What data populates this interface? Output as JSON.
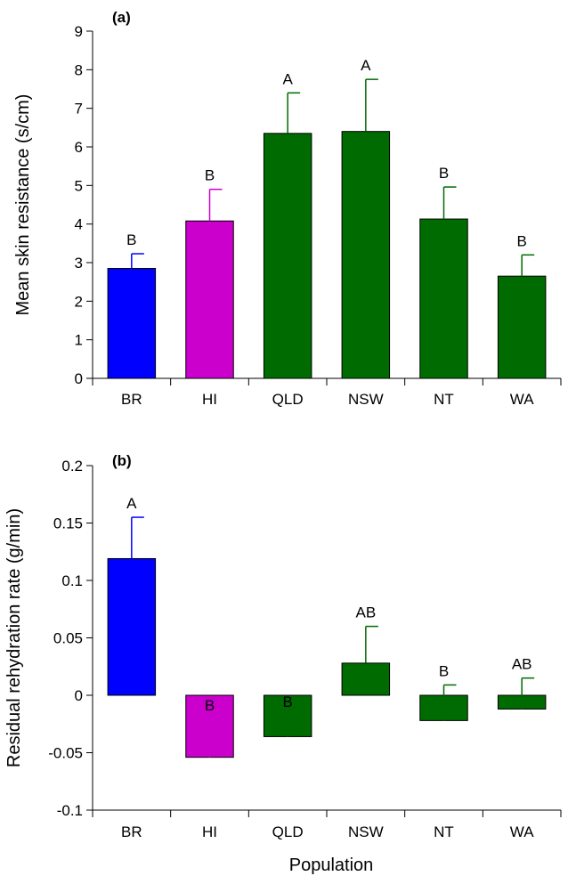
{
  "colors": {
    "BR": "#0000ff",
    "HI": "#cc00cc",
    "QLD": "#006b00",
    "NSW": "#006b00",
    "NT": "#006b00",
    "WA": "#006b00",
    "axis": "#000000"
  },
  "shared_xlabel": "Population",
  "chart_data": [
    {
      "type": "bar",
      "panel_label": "(a)",
      "categories": [
        "BR",
        "HI",
        "QLD",
        "NSW",
        "NT",
        "WA"
      ],
      "values": [
        2.85,
        4.08,
        6.35,
        6.4,
        4.13,
        2.65
      ],
      "error_upper": [
        0.38,
        0.82,
        1.05,
        1.35,
        0.83,
        0.55
      ],
      "significance_labels": [
        "B",
        "B",
        "A",
        "A",
        "B",
        "B"
      ],
      "title": "",
      "xlabel": "",
      "ylabel": "Mean skin resistance (s/cm)",
      "ylim": [
        0,
        9
      ],
      "yticks": [
        0,
        1,
        2,
        3,
        4,
        5,
        6,
        7,
        8,
        9
      ],
      "ytick_labels": [
        "0",
        "1",
        "2",
        "3",
        "4",
        "5",
        "6",
        "7",
        "8",
        "9"
      ],
      "grid": false,
      "legend": "none"
    },
    {
      "type": "bar",
      "panel_label": "(b)",
      "categories": [
        "BR",
        "HI",
        "QLD",
        "NSW",
        "NT",
        "WA"
      ],
      "values": [
        0.119,
        -0.054,
        -0.036,
        0.028,
        -0.022,
        -0.012
      ],
      "error_upper": [
        0.036,
        0.033,
        0.018,
        0.032,
        0.031,
        0.027
      ],
      "significance_labels": [
        "A",
        "B",
        "B",
        "AB",
        "B",
        "AB"
      ],
      "title": "",
      "xlabel": "Population",
      "ylabel": "Residual rehydration rate (g/min)",
      "ylim": [
        -0.1,
        0.2
      ],
      "yticks": [
        -0.1,
        -0.05,
        0,
        0.05,
        0.1,
        0.15,
        0.2
      ],
      "ytick_labels": [
        "-0.1",
        "-0.05",
        "0",
        "0.05",
        "0.1",
        "0.15",
        "0.2"
      ],
      "grid": false,
      "legend": "none"
    }
  ]
}
